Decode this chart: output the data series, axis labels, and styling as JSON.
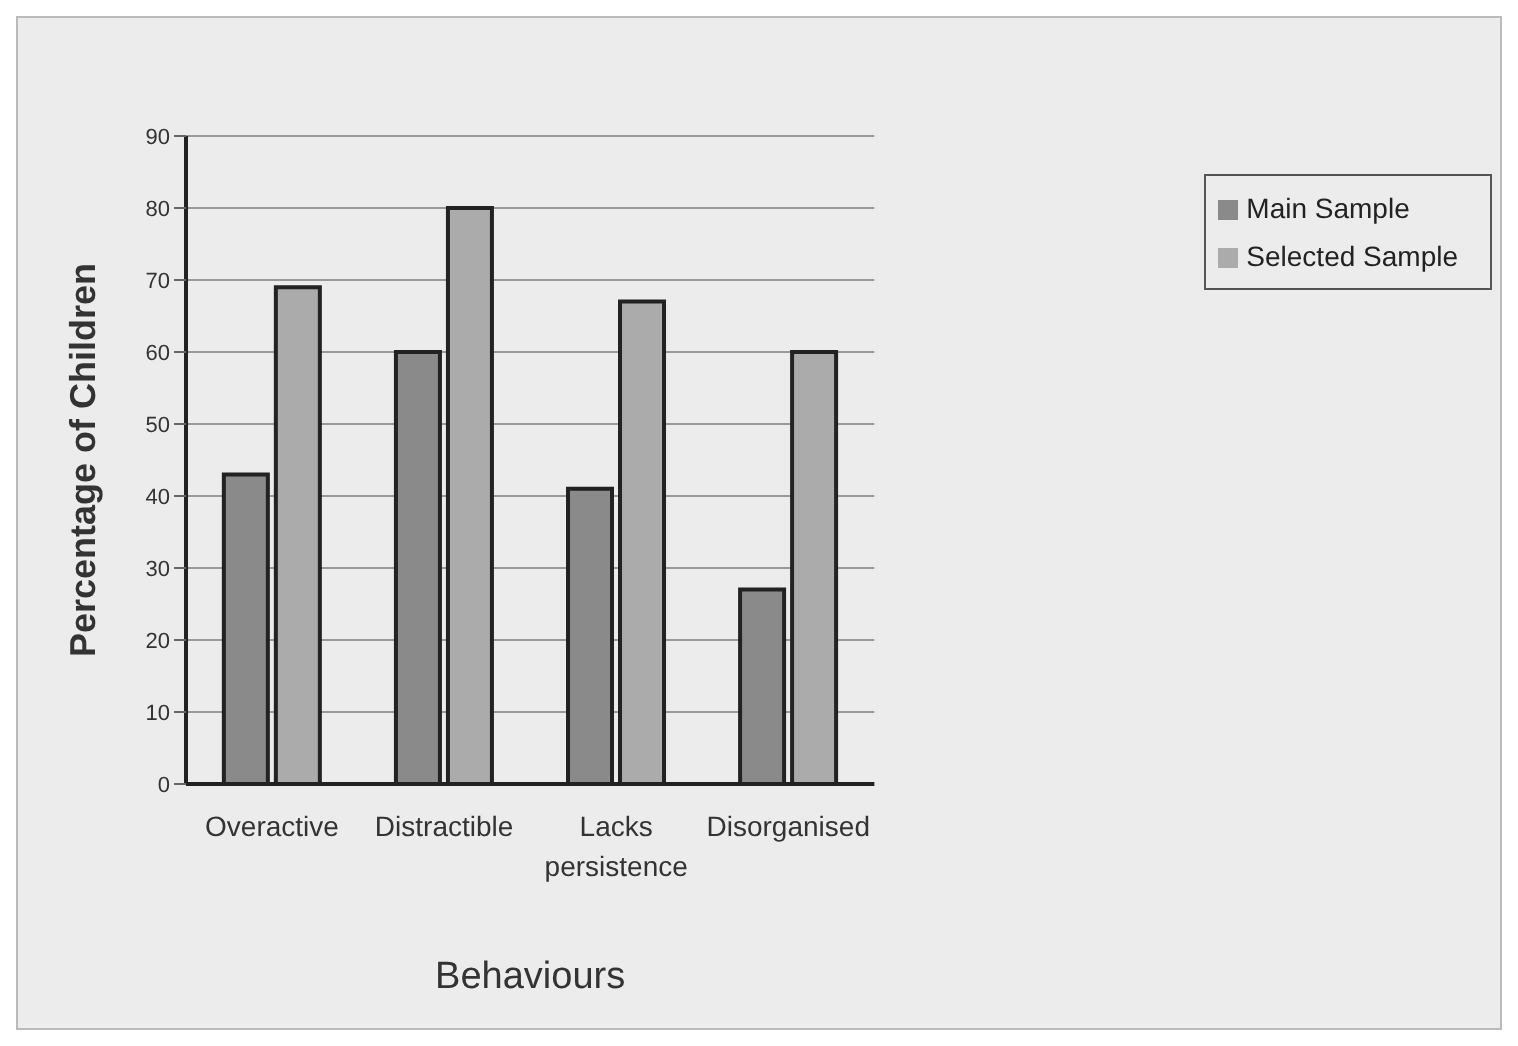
{
  "chart_data": {
    "type": "bar",
    "xlabel": "Behaviours",
    "ylabel": "Percentage of Children",
    "categories": [
      "Overactive",
      "Distractible",
      "Lacks persistence",
      "Disorganised"
    ],
    "series": [
      {
        "name": "Main Sample",
        "color": "#8a8a8a",
        "values": [
          43,
          60,
          41,
          27
        ]
      },
      {
        "name": "Selected Sample",
        "color": "#ababab",
        "values": [
          69,
          80,
          67,
          60
        ]
      }
    ],
    "ylim": [
      0,
      90
    ],
    "yticks": [
      0,
      10,
      20,
      30,
      40,
      50,
      60,
      70,
      80,
      90
    ],
    "grid": "y",
    "legend": "right"
  }
}
